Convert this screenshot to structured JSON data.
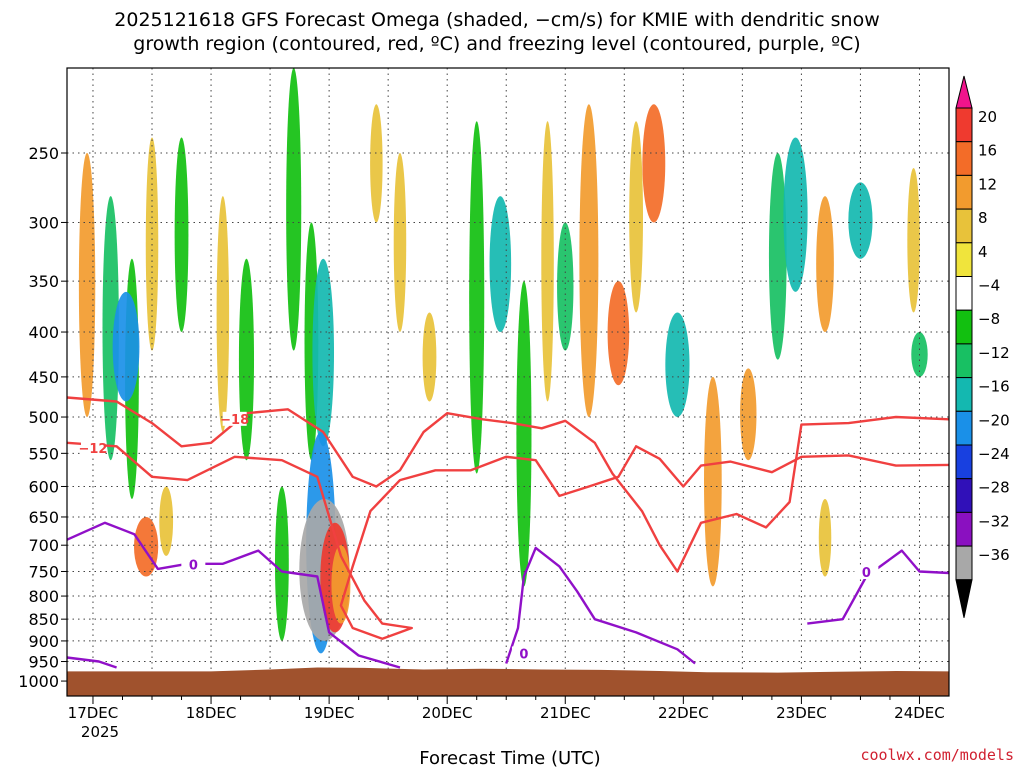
{
  "chart_data": {
    "type": "heatmap",
    "title": {
      "line1": "2025121618 GFS Forecast Omega (shaded, −cm/s) for KMIE with dendritic snow",
      "line2": "growth region (contoured, red, ºC) and freezing level (contoured, purple, ºC)"
    },
    "xlabel": "Forecast Time (UTC)",
    "credit": "coolwx.com/models",
    "x_ticks": [
      {
        "label": "17DEC",
        "day": 0
      },
      {
        "label": "18DEC",
        "day": 1
      },
      {
        "label": "19DEC",
        "day": 2
      },
      {
        "label": "20DEC",
        "day": 3
      },
      {
        "label": "21DEC",
        "day": 4
      },
      {
        "label": "22DEC",
        "day": 5
      },
      {
        "label": "23DEC",
        "day": 6
      },
      {
        "label": "24DEC",
        "day": 7
      }
    ],
    "x_year": "2025",
    "x_range_days": [
      -0.22,
      7.25
    ],
    "y_range_hpa": [
      1040,
      200
    ],
    "y_ticks": [
      {
        "label": "250",
        "p": 250
      },
      {
        "label": "300",
        "p": 300
      },
      {
        "label": "350",
        "p": 350
      },
      {
        "label": "400",
        "p": 400
      },
      {
        "label": "450",
        "p": 450
      },
      {
        "label": "500",
        "p": 500
      },
      {
        "label": "550",
        "p": 550
      },
      {
        "label": "600",
        "p": 600
      },
      {
        "label": "650",
        "p": 650
      },
      {
        "label": "700",
        "p": 700
      },
      {
        "label": "750",
        "p": 750
      },
      {
        "label": "800",
        "p": 800
      },
      {
        "label": "850",
        "p": 850
      },
      {
        "label": "900",
        "p": 900
      },
      {
        "label": "950",
        "p": 950
      },
      {
        "label": "1000",
        "p": 1000
      }
    ],
    "colorbar": {
      "labels": [
        "20",
        "16",
        "12",
        "8",
        "4",
        "−4",
        "−8",
        "−12",
        "−16",
        "−20",
        "−24",
        "−28",
        "−32",
        "−36"
      ],
      "colors": [
        "#f0148c",
        "#ef3a2f",
        "#f36c28",
        "#f29b2e",
        "#e8c23a",
        "#f0e43c",
        "#ffffff",
        "#12c010",
        "#18c063",
        "#14b8b0",
        "#1a90e8",
        "#1840e0",
        "#3010b8",
        "#8a10c0",
        "#a8a8a8",
        "#000000"
      ]
    },
    "omega_patches": [
      {
        "d": -0.05,
        "p1": 500,
        "p2": 250,
        "v": 8
      },
      {
        "d": 0.15,
        "p1": 560,
        "p2": 280,
        "v": -8
      },
      {
        "d": 0.33,
        "p1": 620,
        "p2": 330,
        "v": -6
      },
      {
        "d": 0.5,
        "p1": 420,
        "p2": 240,
        "v": 5
      },
      {
        "d": 0.75,
        "p1": 400,
        "p2": 240,
        "v": -6
      },
      {
        "d": 0.28,
        "p1": 480,
        "p2": 360,
        "v": -16
      },
      {
        "d": 0.45,
        "p1": 760,
        "p2": 650,
        "v": 14
      },
      {
        "d": 0.62,
        "p1": 720,
        "p2": 600,
        "v": 6
      },
      {
        "d": 1.1,
        "p1": 520,
        "p2": 280,
        "v": 5
      },
      {
        "d": 1.3,
        "p1": 560,
        "p2": 330,
        "v": -7
      },
      {
        "d": 1.6,
        "p1": 900,
        "p2": 600,
        "v": -6
      },
      {
        "d": 1.7,
        "p1": 420,
        "p2": 200,
        "v": -7
      },
      {
        "d": 1.85,
        "p1": 560,
        "p2": 300,
        "v": -6
      },
      {
        "d": 1.95,
        "p1": 540,
        "p2": 330,
        "v": -12
      },
      {
        "d": 1.93,
        "p1": 930,
        "p2": 520,
        "v": -18
      },
      {
        "d": 1.96,
        "p1": 900,
        "p2": 620,
        "v": -34
      },
      {
        "d": 2.05,
        "p1": 880,
        "p2": 660,
        "v": 18
      },
      {
        "d": 2.1,
        "p1": 860,
        "p2": 700,
        "v": 10
      },
      {
        "d": 2.4,
        "p1": 300,
        "p2": 220,
        "v": 5
      },
      {
        "d": 2.6,
        "p1": 400,
        "p2": 250,
        "v": 5
      },
      {
        "d": 2.85,
        "p1": 480,
        "p2": 380,
        "v": 6
      },
      {
        "d": 3.25,
        "p1": 580,
        "p2": 230,
        "v": -7
      },
      {
        "d": 3.45,
        "p1": 400,
        "p2": 280,
        "v": -12
      },
      {
        "d": 3.65,
        "p1": 780,
        "p2": 350,
        "v": -7
      },
      {
        "d": 3.85,
        "p1": 480,
        "p2": 230,
        "v": 5
      },
      {
        "d": 4.0,
        "p1": 420,
        "p2": 300,
        "v": -8
      },
      {
        "d": 4.2,
        "p1": 500,
        "p2": 220,
        "v": 10
      },
      {
        "d": 4.45,
        "p1": 460,
        "p2": 350,
        "v": 12
      },
      {
        "d": 4.6,
        "p1": 380,
        "p2": 230,
        "v": 6
      },
      {
        "d": 4.75,
        "p1": 300,
        "p2": 220,
        "v": 13
      },
      {
        "d": 4.95,
        "p1": 500,
        "p2": 380,
        "v": -14
      },
      {
        "d": 5.25,
        "p1": 780,
        "p2": 450,
        "v": 9
      },
      {
        "d": 5.55,
        "p1": 560,
        "p2": 440,
        "v": 8
      },
      {
        "d": 5.8,
        "p1": 430,
        "p2": 250,
        "v": -9
      },
      {
        "d": 5.95,
        "p1": 360,
        "p2": 240,
        "v": -14
      },
      {
        "d": 6.2,
        "p1": 400,
        "p2": 280,
        "v": 9
      },
      {
        "d": 6.2,
        "p1": 760,
        "p2": 620,
        "v": 5
      },
      {
        "d": 6.5,
        "p1": 330,
        "p2": 270,
        "v": -14
      },
      {
        "d": 6.95,
        "p1": 380,
        "p2": 260,
        "v": 5
      },
      {
        "d": 7.0,
        "p1": 450,
        "p2": 400,
        "v": -8
      }
    ],
    "dgz_contours": [
      {
        "label": "−18",
        "label_day": 1.2,
        "label_p": 505,
        "points": [
          [
            -0.22,
            475
          ],
          [
            0.2,
            480
          ],
          [
            0.5,
            508
          ],
          [
            0.75,
            540
          ],
          [
            1.0,
            535
          ],
          [
            1.3,
            495
          ],
          [
            1.65,
            490
          ],
          [
            1.95,
            520
          ],
          [
            2.2,
            585
          ],
          [
            2.4,
            600
          ],
          [
            2.6,
            575
          ],
          [
            2.8,
            520
          ],
          [
            3.0,
            495
          ],
          [
            3.3,
            503
          ],
          [
            3.55,
            508
          ],
          [
            3.8,
            515
          ],
          [
            4.0,
            505
          ],
          [
            4.25,
            535
          ],
          [
            4.4,
            580
          ],
          [
            4.65,
            640
          ],
          [
            4.8,
            700
          ],
          [
            4.95,
            750
          ],
          [
            5.15,
            660
          ],
          [
            5.45,
            645
          ],
          [
            5.7,
            668
          ],
          [
            5.9,
            625
          ],
          [
            6.0,
            510
          ],
          [
            6.4,
            508
          ],
          [
            6.8,
            500
          ],
          [
            7.25,
            503
          ]
        ]
      },
      {
        "label": "−12",
        "label_day": 0.0,
        "label_p": 545,
        "points": [
          [
            -0.22,
            535
          ],
          [
            0.2,
            540
          ],
          [
            0.5,
            585
          ],
          [
            0.8,
            590
          ],
          [
            1.2,
            555
          ],
          [
            1.6,
            560
          ],
          [
            1.9,
            585
          ],
          [
            2.1,
            720
          ],
          [
            2.3,
            810
          ],
          [
            2.45,
            860
          ],
          [
            2.7,
            870
          ],
          [
            2.45,
            895
          ],
          [
            2.2,
            870
          ],
          [
            2.1,
            820
          ],
          [
            2.2,
            740
          ],
          [
            2.35,
            640
          ],
          [
            2.6,
            590
          ],
          [
            2.9,
            575
          ],
          [
            3.2,
            575
          ],
          [
            3.5,
            555
          ],
          [
            3.75,
            560
          ],
          [
            3.95,
            615
          ],
          [
            4.2,
            600
          ],
          [
            4.45,
            585
          ],
          [
            4.6,
            540
          ],
          [
            4.8,
            558
          ],
          [
            5.0,
            600
          ],
          [
            5.15,
            568
          ],
          [
            5.4,
            562
          ],
          [
            5.75,
            578
          ],
          [
            6.0,
            555
          ],
          [
            6.4,
            553
          ],
          [
            6.8,
            568
          ],
          [
            7.25,
            567
          ]
        ]
      }
    ],
    "freezing_contours": [
      {
        "label": "0",
        "label_day": 0.85,
        "label_p": 740,
        "points": [
          [
            -0.22,
            690
          ],
          [
            0.1,
            660
          ],
          [
            0.35,
            680
          ],
          [
            0.55,
            745
          ],
          [
            0.8,
            735
          ],
          [
            1.1,
            735
          ],
          [
            1.4,
            710
          ],
          [
            1.6,
            750
          ],
          [
            1.9,
            760
          ],
          [
            2.0,
            880
          ],
          [
            2.25,
            935
          ],
          [
            2.6,
            965
          ]
        ]
      },
      {
        "label": "0",
        "label_day": 3.65,
        "label_p": 935,
        "points": [
          [
            3.5,
            955
          ],
          [
            3.6,
            870
          ],
          [
            3.65,
            760
          ],
          [
            3.75,
            705
          ],
          [
            3.95,
            740
          ],
          [
            4.1,
            790
          ],
          [
            4.25,
            850
          ],
          [
            4.6,
            880
          ],
          [
            4.95,
            920
          ],
          [
            5.1,
            955
          ]
        ]
      },
      {
        "label": "0",
        "label_day": 6.55,
        "label_p": 755,
        "points": [
          [
            6.05,
            860
          ],
          [
            6.35,
            850
          ],
          [
            6.55,
            760
          ],
          [
            6.85,
            710
          ],
          [
            7.0,
            750
          ],
          [
            7.25,
            753
          ]
        ]
      },
      {
        "label": "",
        "label_day": 0,
        "label_p": 0,
        "points": [
          [
            -0.22,
            940
          ],
          [
            0.05,
            950
          ],
          [
            0.2,
            965
          ]
        ]
      }
    ],
    "terrain_hpa": [
      [
        -0.22,
        975
      ],
      [
        0.5,
        975
      ],
      [
        1.0,
        975
      ],
      [
        1.5,
        970
      ],
      [
        1.9,
        965
      ],
      [
        2.3,
        966
      ],
      [
        2.8,
        970
      ],
      [
        3.3,
        968
      ],
      [
        3.8,
        970
      ],
      [
        4.3,
        971
      ],
      [
        4.8,
        974
      ],
      [
        5.2,
        977
      ],
      [
        5.8,
        978
      ],
      [
        6.3,
        976
      ],
      [
        6.8,
        974
      ],
      [
        7.25,
        975
      ]
    ]
  }
}
